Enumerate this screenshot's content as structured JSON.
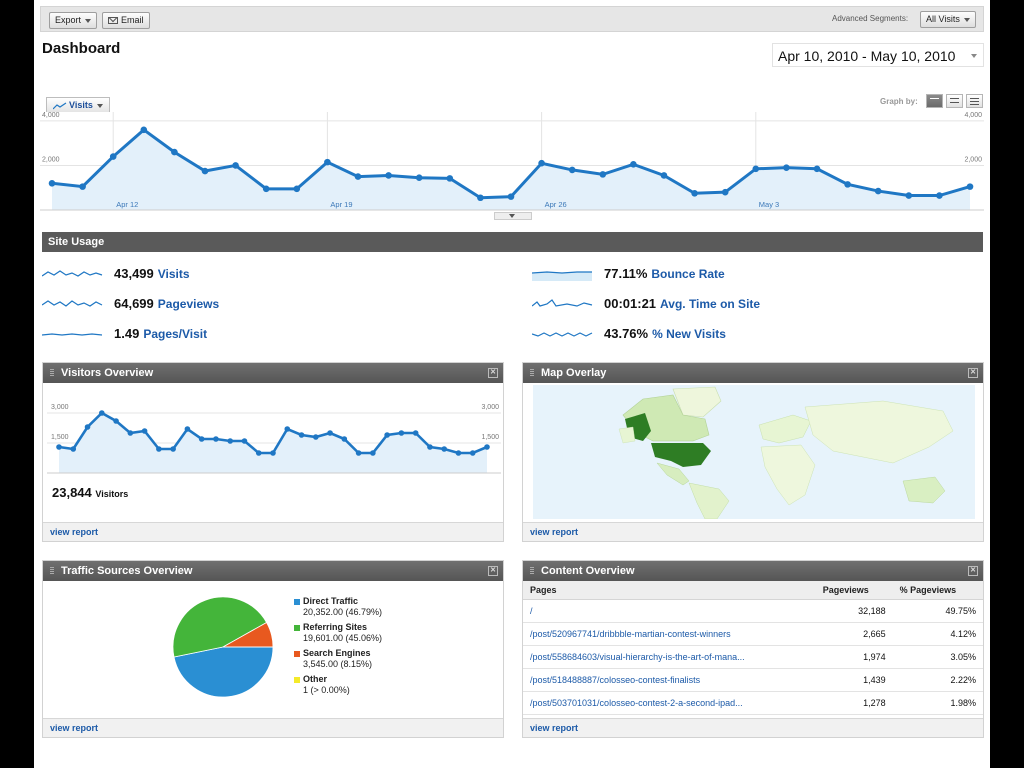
{
  "toolbar": {
    "export_label": "Export",
    "email_label": "Email",
    "advanced_segments_label": "Advanced Segments:",
    "segment_value": "All Visits"
  },
  "page_title": "Dashboard",
  "date_range": "Apr 10, 2010 - May 10, 2010",
  "main_graph": {
    "metric_label": "Visits",
    "graph_by_label": "Graph by:",
    "chart_data": {
      "type": "area",
      "series": [
        {
          "name": "Visits",
          "values": [
            1200,
            1050,
            2400,
            3600,
            2600,
            1750,
            2000,
            950,
            950,
            2150,
            1500,
            1550,
            1450,
            1420,
            550,
            600,
            2100,
            1800,
            1600,
            2050,
            1550,
            750,
            800,
            1850,
            1900,
            1850,
            1150,
            850,
            650,
            650,
            1050
          ]
        }
      ],
      "x_tick_labels": [
        "Apr 12",
        "Apr 19",
        "Apr 26",
        "May 3"
      ],
      "y_tick_labels": [
        "4,000",
        "2,000"
      ],
      "ylim": [
        0,
        4400
      ],
      "color": "#1f77c4"
    }
  },
  "site_usage": {
    "title": "Site Usage",
    "metrics": [
      {
        "value": "43,499",
        "label": "Visits"
      },
      {
        "value": "64,699",
        "label": "Pageviews"
      },
      {
        "value": "1.49",
        "label": "Pages/Visit"
      },
      {
        "value": "77.11%",
        "label": "Bounce Rate"
      },
      {
        "value": "00:01:21",
        "label": "Avg. Time on Site"
      },
      {
        "value": "43.76%",
        "label": "% New Visits"
      }
    ]
  },
  "visitors_overview": {
    "title": "Visitors Overview",
    "total_value": "23,844",
    "total_label": "Visitors",
    "view_report": "view report",
    "chart_data": {
      "type": "area",
      "series": [
        {
          "name": "Visitors",
          "values": [
            1300,
            1200,
            2300,
            3000,
            2600,
            2000,
            2100,
            1200,
            1200,
            2200,
            1700,
            1700,
            1600,
            1600,
            1000,
            1000,
            2200,
            1900,
            1800,
            2000,
            1700,
            1000,
            1000,
            1900,
            2000,
            2000,
            1300,
            1200,
            1000,
            1000,
            1300
          ]
        }
      ],
      "y_tick_labels": [
        "3,000",
        "1,500"
      ],
      "ylim": [
        0,
        3500
      ]
    }
  },
  "map_overlay": {
    "title": "Map Overlay",
    "view_report": "view report"
  },
  "traffic_sources": {
    "title": "Traffic Sources Overview",
    "view_report": "view report",
    "chart_data": {
      "type": "pie",
      "slices": [
        {
          "name": "Direct Traffic",
          "value": 20352,
          "detail": "20,352.00 (46.79%)",
          "color": "#2a8fd3"
        },
        {
          "name": "Referring Sites",
          "value": 19601,
          "detail": "19,601.00 (45.06%)",
          "color": "#44b53a"
        },
        {
          "name": "Search Engines",
          "value": 3545,
          "detail": "3,545.00 (8.15%)",
          "color": "#e8591f"
        },
        {
          "name": "Other",
          "value": 1,
          "detail": "1 (> 0.00%)",
          "color": "#f4ea2a"
        }
      ]
    }
  },
  "content_overview": {
    "title": "Content Overview",
    "view_report": "view report",
    "headers": [
      "Pages",
      "Pageviews",
      "% Pageviews"
    ],
    "rows": [
      {
        "page": "/",
        "pageviews": "32,188",
        "pct": "49.75%"
      },
      {
        "page": "/post/520967741/dribbble-martian-contest-winners",
        "pageviews": "2,665",
        "pct": "4.12%"
      },
      {
        "page": "/post/558684603/visual-hierarchy-is-the-art-of-mana...",
        "pageviews": "1,974",
        "pct": "3.05%"
      },
      {
        "page": "/post/518488887/colosseo-contest-finalists",
        "pageviews": "1,439",
        "pct": "2.22%"
      },
      {
        "page": "/post/503701031/colosseo-contest-2-a-second-ipad...",
        "pageviews": "1,278",
        "pct": "1.98%"
      }
    ]
  }
}
